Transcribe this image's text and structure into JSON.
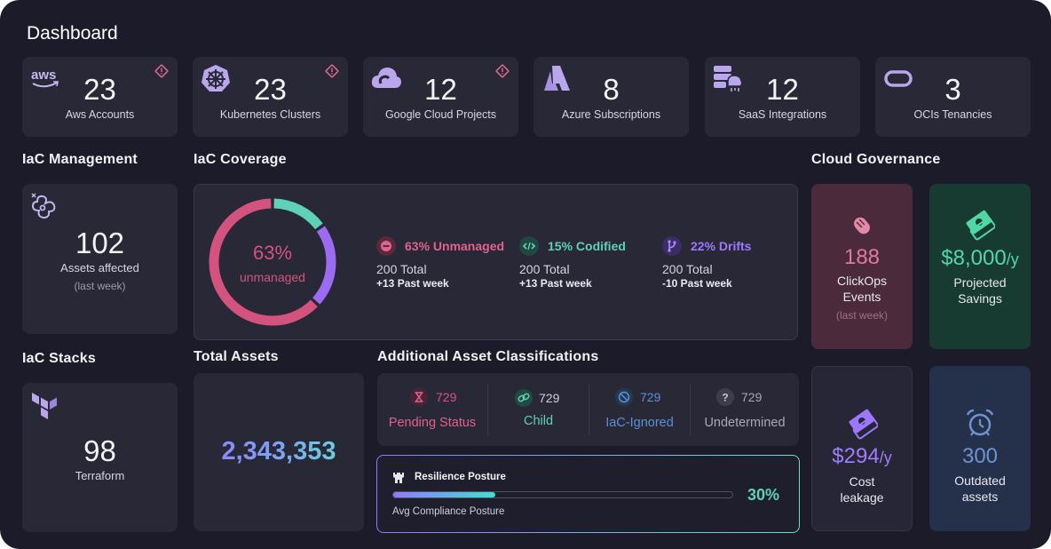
{
  "page": {
    "title": "Dashboard"
  },
  "kpis": [
    {
      "value": "23",
      "label": "Aws Accounts",
      "icon": "aws-icon",
      "warning": true
    },
    {
      "value": "23",
      "label": "Kubernetes Clusters",
      "icon": "kubernetes-icon",
      "warning": true
    },
    {
      "value": "12",
      "label": "Google Cloud Projects",
      "icon": "google-cloud-icon",
      "warning": true
    },
    {
      "value": "8",
      "label": "Azure Subscriptions",
      "icon": "azure-icon",
      "warning": false
    },
    {
      "value": "12",
      "label": "SaaS Integrations",
      "icon": "saas-icon",
      "warning": false
    },
    {
      "value": "3",
      "label": "OCIs Tenancies",
      "icon": "oracle-icon",
      "warning": false
    }
  ],
  "iac_management": {
    "title": "IaC Management",
    "value": "102",
    "label": "Assets affected",
    "sub": "(last week)"
  },
  "iac_stacks": {
    "title": "IaC Stacks",
    "value": "98",
    "label": "Terraform"
  },
  "coverage": {
    "title": "IaC Coverage",
    "donut": {
      "percent_text": "63%",
      "label": "unmanaged",
      "segments": [
        {
          "name": "unmanaged",
          "value": 63,
          "color": "#d4537e"
        },
        {
          "name": "codified",
          "value": 15,
          "color": "#5fd1b8"
        },
        {
          "name": "drifts",
          "value": 22,
          "color": "#9b6cf2"
        }
      ]
    },
    "items": [
      {
        "name": "63% Unmanaged",
        "total": "200 Total",
        "week": "+13 Past week",
        "color": "#e0628e",
        "icon": "minus-circle-icon"
      },
      {
        "name": "15% Codified",
        "total": "200 Total",
        "week": "+13 Past week",
        "color": "#5fd1b8",
        "icon": "code-icon"
      },
      {
        "name": "22% Drifts",
        "total": "200 Total",
        "week": "-10 Past week",
        "color": "#9d78ff",
        "icon": "branch-icon"
      }
    ]
  },
  "total_assets": {
    "title": "Total Assets",
    "value": "2,343,353"
  },
  "classifications": {
    "title": "Additional Asset Classifications",
    "items": [
      {
        "count": "729",
        "label": "Pending Status",
        "color": "#d4537e",
        "icon": "hourglass-icon"
      },
      {
        "count": "729",
        "label": "Child",
        "color": "#5fd1b8",
        "icon": "link-icon"
      },
      {
        "count": "729",
        "label": "IaC-Ignored",
        "color": "#5b8fd6",
        "icon": "ignored-icon"
      },
      {
        "count": "729",
        "label": "Undetermined",
        "color": "#a8a8b6",
        "icon": "question-icon"
      }
    ]
  },
  "resilience": {
    "title": "Resilience Posture",
    "subtitle": "Avg Compliance Posture",
    "percent_text": "30%",
    "progress": 0.3
  },
  "governance": {
    "title": "Cloud Governance",
    "clickops": {
      "value": "188",
      "label_line1": "ClickOps",
      "label_line2": "Events",
      "sub": "(last week)"
    },
    "savings": {
      "value": "$8,000",
      "unit": "/y",
      "label_line1": "Projected",
      "label_line2": "Savings"
    },
    "leakage": {
      "value": "$294",
      "unit": "/y",
      "label_line1": "Cost",
      "label_line2": "leakage"
    },
    "outdated": {
      "value": "300",
      "label_line1": "Outdated",
      "label_line2": "assets"
    }
  }
}
